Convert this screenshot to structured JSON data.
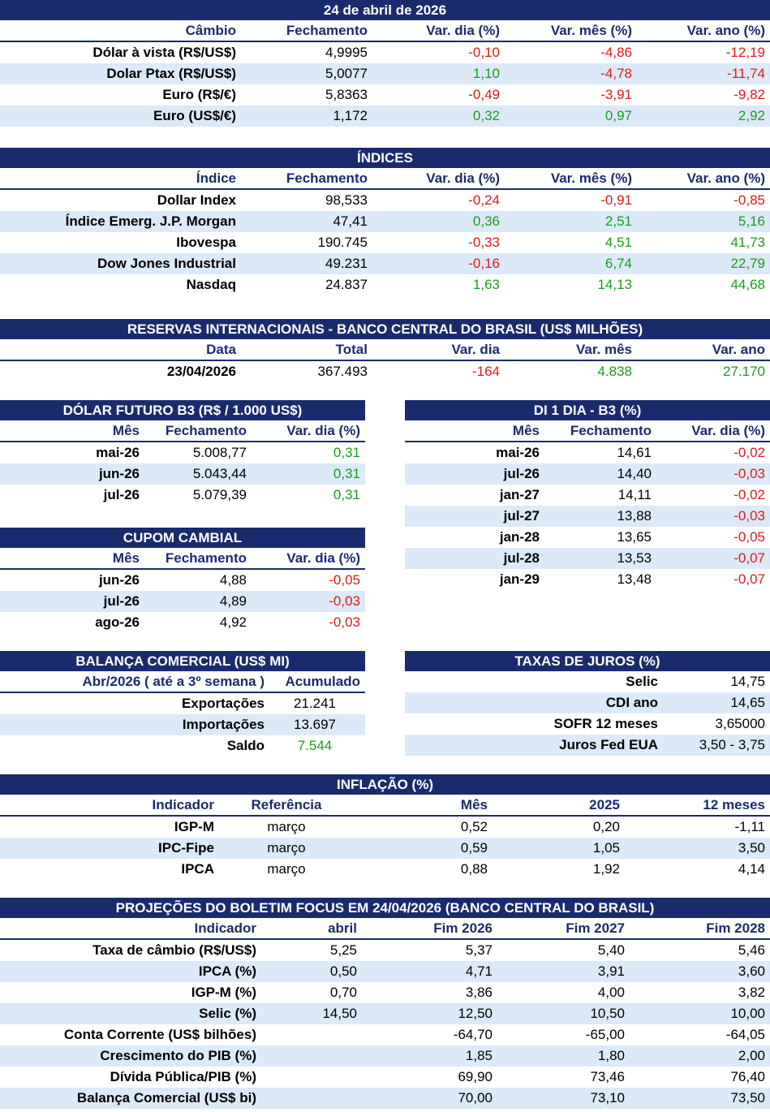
{
  "cambio": {
    "band": "24 de abril de 2026",
    "headers": [
      "Câmbio",
      "Fechamento",
      "Var. dia (%)",
      "Var. mês (%)",
      "Var. ano (%)"
    ],
    "rows": [
      [
        "Dólar à vista (R$/US$)",
        "4,9995",
        "-0,10",
        "-4,86",
        "-12,19"
      ],
      [
        "Dolar Ptax (R$/US$)",
        "5,0077",
        "1,10",
        "-4,78",
        "-11,74"
      ],
      [
        "Euro (R$/€)",
        "5,8363",
        "-0,49",
        "-3,91",
        "-9,82"
      ],
      [
        "Euro (US$/€)",
        "1,172",
        "0,32",
        "0,97",
        "2,92"
      ]
    ]
  },
  "indices": {
    "band": "ÍNDICES",
    "headers": [
      "Índice",
      "Fechamento",
      "Var. dia (%)",
      "Var. mês (%)",
      "Var. ano (%)"
    ],
    "rows": [
      [
        "Dollar Index",
        "98,533",
        "-0,24",
        "-0,91",
        "-0,85"
      ],
      [
        "Índice Emerg. J.P. Morgan",
        "47,41",
        "0,36",
        "2,51",
        "5,16"
      ],
      [
        "Ibovespa",
        "190.745",
        "-0,33",
        "4,51",
        "41,73"
      ],
      [
        "Dow Jones Industrial",
        "49.231",
        "-0,16",
        "6,74",
        "22,79"
      ],
      [
        "Nasdaq",
        "24.837",
        "1,63",
        "14,13",
        "44,68"
      ]
    ]
  },
  "reservas": {
    "band": "RESERVAS INTERNACIONAIS - BANCO CENTRAL DO BRASIL (US$ MILHÕES)",
    "headers": [
      "Data",
      "Total",
      "Var. dia",
      "Var. mês",
      "Var. ano"
    ],
    "rows": [
      [
        "23/04/2026",
        "367.493",
        "-164",
        "4.838",
        "27.170"
      ]
    ]
  },
  "dolar_futuro": {
    "band": "DÓLAR FUTURO B3 (R$ / 1.000 US$)",
    "headers": [
      "Mês",
      "Fechamento",
      "Var. dia (%)"
    ],
    "rows": [
      [
        "mai-26",
        "5.008,77",
        "0,31"
      ],
      [
        "jun-26",
        "5.043,44",
        "0,31"
      ],
      [
        "jul-26",
        "5.079,39",
        "0,31"
      ]
    ]
  },
  "di": {
    "band": "DI 1 DIA - B3 (%)",
    "headers": [
      "Mês",
      "Fechamento",
      "Var. dia (%)"
    ],
    "rows": [
      [
        "mai-26",
        "14,61",
        "-0,02"
      ],
      [
        "jul-26",
        "14,40",
        "-0,03"
      ],
      [
        "jan-27",
        "14,11",
        "-0,02"
      ],
      [
        "jul-27",
        "13,88",
        "-0,03"
      ],
      [
        "jan-28",
        "13,65",
        "-0,05"
      ],
      [
        "jul-28",
        "13,53",
        "-0,07"
      ],
      [
        "jan-29",
        "13,48",
        "-0,07"
      ]
    ]
  },
  "cupom": {
    "band": "CUPOM CAMBIAL",
    "headers": [
      "Mês",
      "Fechamento",
      "Var. dia (%)"
    ],
    "rows": [
      [
        "jun-26",
        "4,88",
        "-0,05"
      ],
      [
        "jul-26",
        "4,89",
        "-0,03"
      ],
      [
        "ago-26",
        "4,92",
        "-0,03"
      ]
    ]
  },
  "balanca": {
    "band": "BALANÇA COMERCIAL (US$ MI)",
    "headers": [
      "Abr/2026 ( até a 3º semana )",
      "Acumulado"
    ],
    "rows": [
      [
        "Exportações",
        "21.241"
      ],
      [
        "Importações",
        "13.697"
      ],
      [
        "Saldo",
        "7.544"
      ]
    ]
  },
  "juros": {
    "band": "TAXAS DE JUROS (%)",
    "rows": [
      [
        "Selic",
        "14,75"
      ],
      [
        "CDI ano",
        "14,65"
      ],
      [
        "SOFR 12 meses",
        "3,65000"
      ],
      [
        "Juros Fed EUA",
        "3,50 - 3,75"
      ]
    ]
  },
  "inflacao": {
    "band": "INFLAÇÃO (%)",
    "headers": [
      "Indicador",
      "Referência",
      "Mês",
      "2025",
      "12 meses"
    ],
    "rows": [
      [
        "IGP-M",
        "março",
        "0,52",
        "0,20",
        "-1,11"
      ],
      [
        "IPC-Fipe",
        "março",
        "0,59",
        "1,05",
        "3,50"
      ],
      [
        "IPCA",
        "março",
        "0,88",
        "1,92",
        "4,14"
      ]
    ]
  },
  "focus": {
    "band": "PROJEÇÕES DO BOLETIM FOCUS EM 24/04/2026 (BANCO CENTRAL DO BRASIL)",
    "headers": [
      "Indicador",
      "abril",
      "Fim 2026",
      "Fim 2027",
      "Fim 2028"
    ],
    "rows": [
      [
        "Taxa de câmbio (R$/US$)",
        "5,25",
        "5,37",
        "5,40",
        "5,46"
      ],
      [
        "IPCA (%)",
        "0,50",
        "4,71",
        "3,91",
        "3,60"
      ],
      [
        "IGP-M (%)",
        "0,70",
        "3,86",
        "4,00",
        "3,82"
      ],
      [
        "Selic (%)",
        "14,50",
        "12,50",
        "10,50",
        "10,00"
      ],
      [
        "Conta Corrente (US$ bilhões)",
        "",
        "-64,70",
        "-65,00",
        "-64,05"
      ],
      [
        "Crescimento do PIB (%)",
        "",
        "1,85",
        "1,80",
        "2,00"
      ],
      [
        "Dívida Pública/PIB (%)",
        "",
        "69,90",
        "73,46",
        "76,40"
      ],
      [
        "Balança Comercial (US$ bi)",
        "",
        "70,00",
        "73,10",
        "73,50"
      ]
    ]
  },
  "colors": {
    "band": "#1a2b6d",
    "alt_row": "#dce9f8",
    "negative": "#e01a1a",
    "positive": "#1d9a1d"
  }
}
